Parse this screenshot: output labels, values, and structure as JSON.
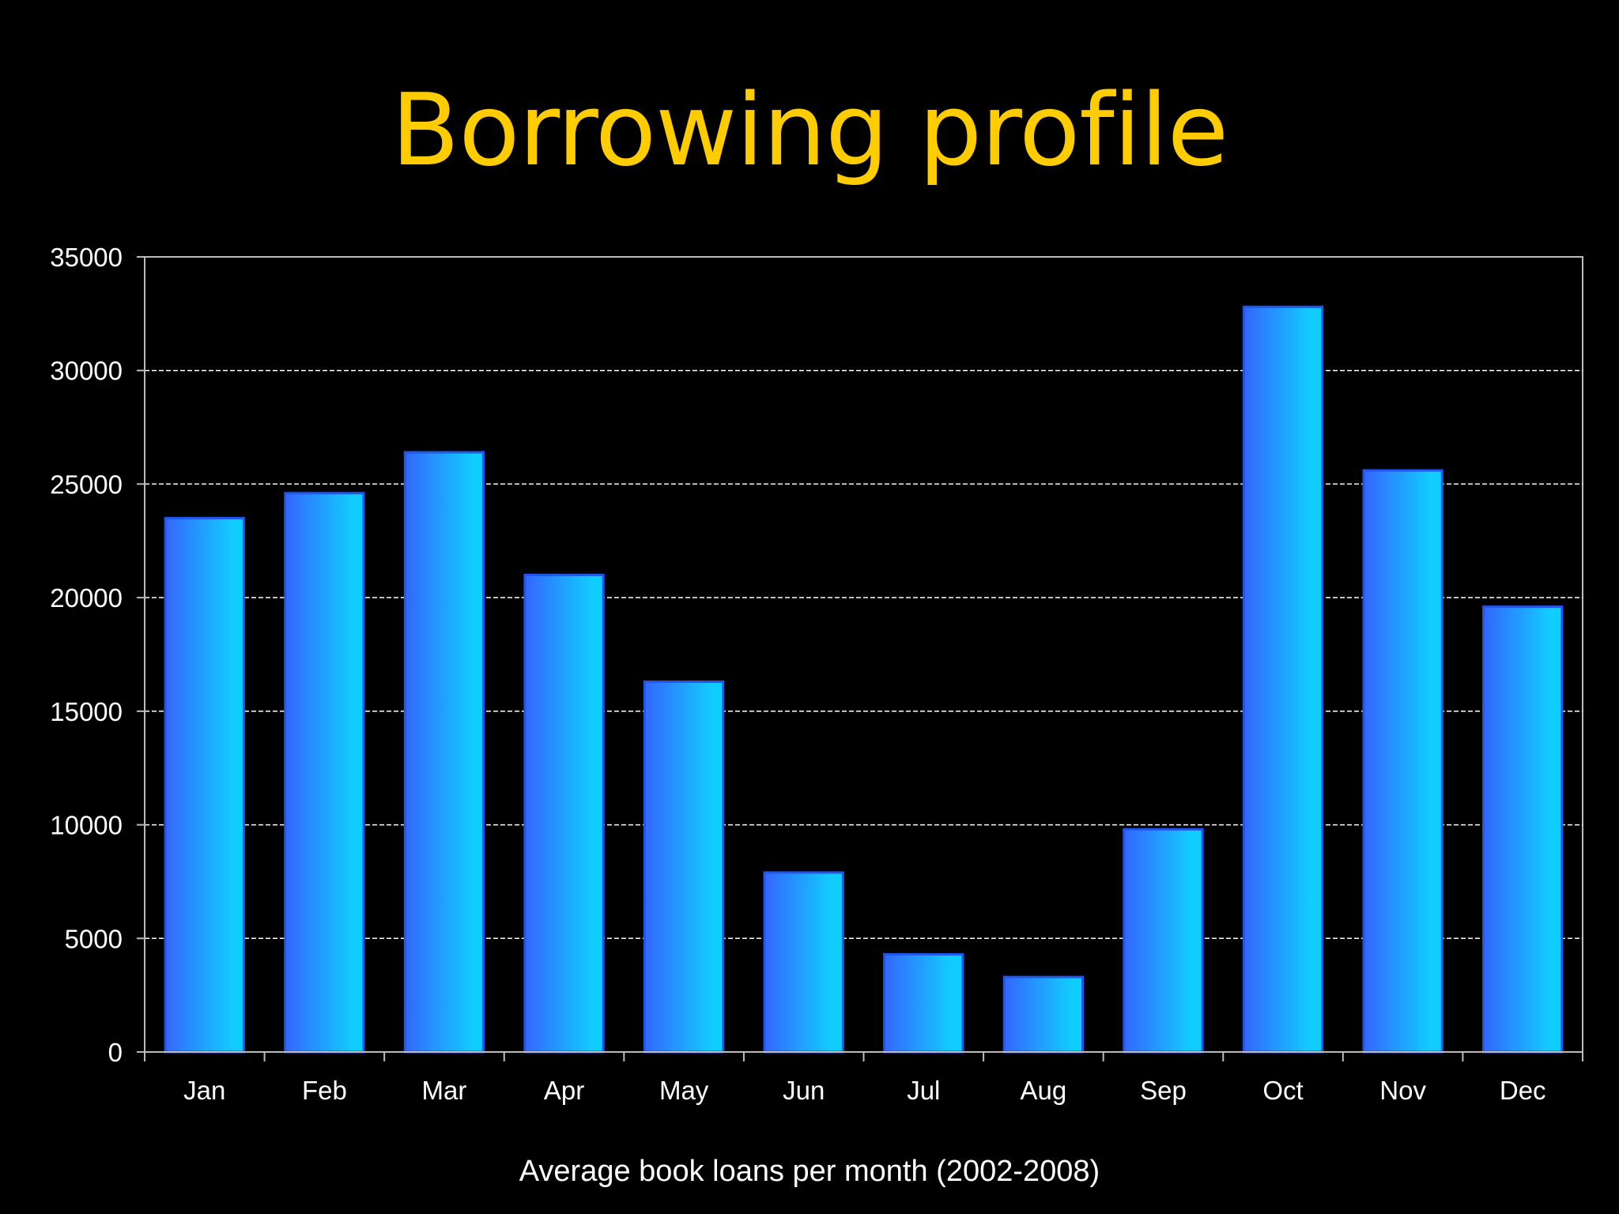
{
  "slide": {
    "title": "Borrowing profile",
    "caption": "Average book loans per month (2002-2008)"
  },
  "colors": {
    "background": "#000000",
    "title": "#FFCC00",
    "bar_left": "#3366FF",
    "bar_right": "#11CCFF",
    "bar_edge": "#2255EE",
    "gridline": "#FFFFFF",
    "axis": "#BBBBBB",
    "text": "#FFFFFF"
  },
  "chart_data": {
    "type": "bar",
    "title": "Borrowing profile",
    "xlabel": "Average book loans per month (2002-2008)",
    "ylabel": "",
    "categories": [
      "Jan",
      "Feb",
      "Mar",
      "Apr",
      "May",
      "Jun",
      "Jul",
      "Aug",
      "Sep",
      "Oct",
      "Nov",
      "Dec"
    ],
    "values": [
      23500,
      24600,
      26400,
      21000,
      16300,
      7900,
      4300,
      3300,
      9800,
      32800,
      25600,
      19600
    ],
    "ylim": [
      0,
      35000
    ],
    "yticks": [
      0,
      5000,
      10000,
      15000,
      20000,
      25000,
      30000,
      35000
    ],
    "ytick_labels": [
      "0",
      "5000",
      "10000",
      "15000",
      "20000",
      "25000",
      "30000",
      "35000"
    ],
    "grid": true,
    "gridline_style": "dashed",
    "legend": "none"
  }
}
